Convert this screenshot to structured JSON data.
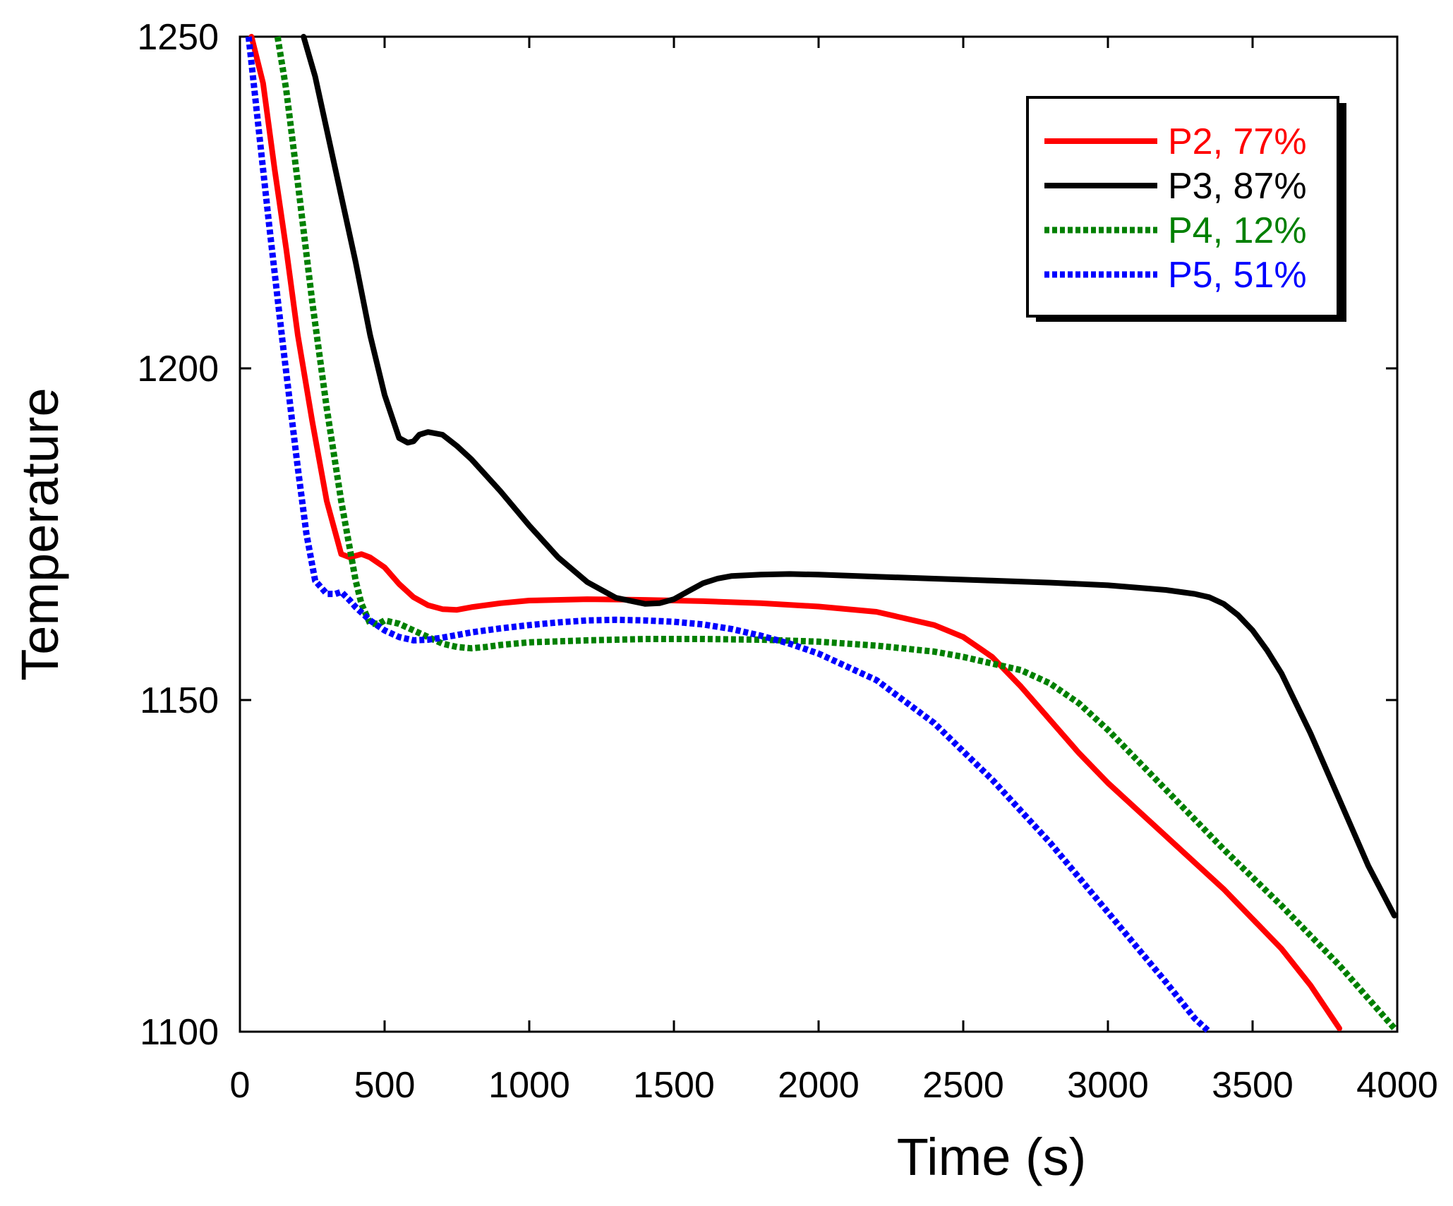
{
  "chart_data": {
    "type": "line",
    "title": "",
    "xlabel": "Time (s)",
    "ylabel": "Temperature",
    "xlim": [
      0,
      4000
    ],
    "ylim": [
      1100,
      1250
    ],
    "xticks": [
      0,
      500,
      1000,
      1500,
      2000,
      2500,
      3000,
      3500,
      4000
    ],
    "yticks": [
      1100,
      1150,
      1200,
      1250
    ],
    "xtick_labels": [
      "0",
      "500",
      "1000",
      "1500",
      "2000",
      "2500",
      "3000",
      "3500",
      "4000"
    ],
    "ytick_labels": [
      "1100",
      "1150",
      "1200",
      "1250"
    ],
    "grid": false,
    "legend_position": "top-right",
    "series": [
      {
        "name": "P2, 77%",
        "color": "#ff0000",
        "dash": "solid",
        "x": [
          40,
          80,
          120,
          160,
          200,
          250,
          300,
          350,
          380,
          420,
          450,
          500,
          550,
          600,
          650,
          700,
          750,
          800,
          900,
          1000,
          1200,
          1400,
          1600,
          1800,
          2000,
          2200,
          2400,
          2500,
          2600,
          2700,
          2800,
          2900,
          3000,
          3200,
          3400,
          3600,
          3700,
          3800
        ],
        "y": [
          1250,
          1243,
          1230,
          1218,
          1205,
          1192,
          1180,
          1172,
          1171.5,
          1172,
          1171.5,
          1170,
          1167.5,
          1165.5,
          1164.3,
          1163.7,
          1163.6,
          1164,
          1164.6,
          1165,
          1165.2,
          1165.1,
          1164.9,
          1164.6,
          1164.1,
          1163.3,
          1161.3,
          1159.5,
          1156.5,
          1152,
          1147,
          1142,
          1137.5,
          1129.5,
          1121.5,
          1112.5,
          1107,
          1100.5
        ]
      },
      {
        "name": "P3, 87%",
        "color": "#000000",
        "dash": "solid",
        "x": [
          220,
          260,
          300,
          350,
          400,
          450,
          500,
          550,
          580,
          600,
          620,
          650,
          700,
          750,
          800,
          900,
          1000,
          1100,
          1200,
          1300,
          1400,
          1450,
          1500,
          1550,
          1600,
          1650,
          1700,
          1800,
          1900,
          2000,
          2200,
          2400,
          2600,
          2800,
          3000,
          3200,
          3300,
          3350,
          3400,
          3450,
          3500,
          3550,
          3600,
          3700,
          3800,
          3900,
          3990
        ],
        "y": [
          1250,
          1244,
          1236,
          1226,
          1216,
          1205,
          1196,
          1189.5,
          1188.8,
          1189,
          1190,
          1190.4,
          1190,
          1188.3,
          1186.3,
          1181.5,
          1176.3,
          1171.5,
          1167.8,
          1165.4,
          1164.5,
          1164.6,
          1165.2,
          1166.4,
          1167.6,
          1168.3,
          1168.7,
          1168.9,
          1169,
          1168.9,
          1168.6,
          1168.3,
          1168,
          1167.7,
          1167.3,
          1166.6,
          1166,
          1165.5,
          1164.5,
          1162.8,
          1160.5,
          1157.5,
          1154,
          1145,
          1135,
          1125,
          1117.5
        ]
      },
      {
        "name": "P4, 12%",
        "color": "#008000",
        "dash": "dashed",
        "x": [
          130,
          160,
          200,
          250,
          300,
          350,
          400,
          420,
          450,
          480,
          500,
          550,
          600,
          650,
          700,
          750,
          800,
          850,
          900,
          1000,
          1200,
          1400,
          1600,
          1800,
          2000,
          2200,
          2400,
          2500,
          2600,
          2700,
          2800,
          2900,
          3000,
          3200,
          3400,
          3600,
          3800,
          3990
        ],
        "y": [
          1250,
          1242,
          1228,
          1210,
          1194,
          1180,
          1168,
          1164.5,
          1161.5,
          1161.5,
          1162,
          1161.5,
          1160.5,
          1159.5,
          1158.5,
          1158,
          1157.8,
          1158,
          1158.3,
          1158.7,
          1159,
          1159.2,
          1159.2,
          1159.1,
          1158.8,
          1158.2,
          1157.3,
          1156.5,
          1155.5,
          1154.5,
          1152.5,
          1149.5,
          1145.5,
          1136.5,
          1127.5,
          1119,
          1110,
          1100.5
        ]
      },
      {
        "name": "P5, 51%",
        "color": "#0000ff",
        "dash": "dashed",
        "x": [
          30,
          60,
          100,
          150,
          200,
          230,
          260,
          300,
          330,
          350,
          380,
          400,
          450,
          500,
          550,
          600,
          650,
          700,
          750,
          800,
          900,
          1000,
          1100,
          1200,
          1300,
          1400,
          1500,
          1600,
          1700,
          1800,
          1900,
          2000,
          2200,
          2400,
          2600,
          2800,
          3000,
          3200,
          3300,
          3350
        ],
        "y": [
          1250,
          1238,
          1222,
          1203,
          1185,
          1175,
          1168,
          1166,
          1166,
          1166.3,
          1165,
          1164,
          1162,
          1160.5,
          1159.5,
          1159,
          1159.1,
          1159.4,
          1159.8,
          1160.2,
          1160.8,
          1161.3,
          1161.7,
          1162,
          1162.1,
          1162,
          1161.8,
          1161.4,
          1160.7,
          1159.7,
          1158.5,
          1157,
          1153,
          1146.5,
          1138,
          1128.5,
          1118,
          1107.5,
          1102,
          1100
        ]
      }
    ]
  }
}
